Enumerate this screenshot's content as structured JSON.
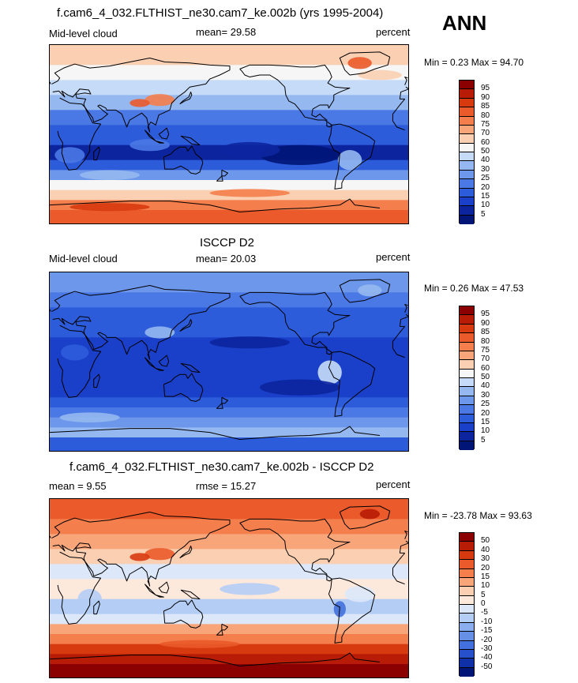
{
  "season": "ANN",
  "panels": [
    {
      "title": "f.cam6_4_032.FLTHIST_ne30.cam7_ke.002b (yrs 1995-2004)",
      "left_label": "Mid-level cloud",
      "center_label": "mean=  29.58",
      "right_label": "percent",
      "minmax": "Min =   0.23 Max =  94.70",
      "levels": [
        "95",
        "90",
        "85",
        "80",
        "75",
        "70",
        "60",
        "50",
        "40",
        "30",
        "25",
        "20",
        "15",
        "10",
        "5"
      ],
      "colors": [
        "#8b0000",
        "#b81c06",
        "#d83a10",
        "#ea5a2a",
        "#f47e4c",
        "#f8a57a",
        "#fbd0b2",
        "#f6f6f6",
        "#c6dbf7",
        "#95b8f0",
        "#6d97ea",
        "#4a78e4",
        "#2d5cdb",
        "#1a3fc8",
        "#0c259e",
        "#001575"
      ],
      "field_scheme": "model"
    },
    {
      "title": "ISCCP D2",
      "left_label": "Mid-level cloud",
      "center_label": "mean=  20.03",
      "right_label": "percent",
      "minmax": "Min =   0.26 Max =  47.53",
      "levels": [
        "95",
        "90",
        "85",
        "80",
        "75",
        "70",
        "60",
        "50",
        "40",
        "30",
        "25",
        "20",
        "15",
        "10",
        "5"
      ],
      "colors": [
        "#8b0000",
        "#b81c06",
        "#d83a10",
        "#ea5a2a",
        "#f47e4c",
        "#f8a57a",
        "#fbd0b2",
        "#f6f6f6",
        "#c6dbf7",
        "#95b8f0",
        "#6d97ea",
        "#4a78e4",
        "#2d5cdb",
        "#1a3fc8",
        "#0c259e",
        "#001575"
      ],
      "field_scheme": "obs"
    },
    {
      "title": "f.cam6_4_032.FLTHIST_ne30.cam7_ke.002b - ISCCP D2",
      "left_label": "mean =   9.55",
      "center_label": "rmse =  15.27",
      "right_label": "percent",
      "minmax": "Min = -23.78 Max =  93.63",
      "levels": [
        "50",
        "40",
        "30",
        "20",
        "15",
        "10",
        "5",
        "0",
        "-5",
        "-10",
        "-15",
        "-20",
        "-30",
        "-40",
        "-50"
      ],
      "colors": [
        "#8b0000",
        "#b81c06",
        "#d83a10",
        "#ea5a2a",
        "#f47e4c",
        "#f8a57a",
        "#fbd0b2",
        "#fde8dc",
        "#dce8fa",
        "#b4cdf5",
        "#8aaeee",
        "#6690e6",
        "#4270dc",
        "#2650cc",
        "#1030a8",
        "#001575"
      ],
      "field_scheme": "diff"
    }
  ]
}
